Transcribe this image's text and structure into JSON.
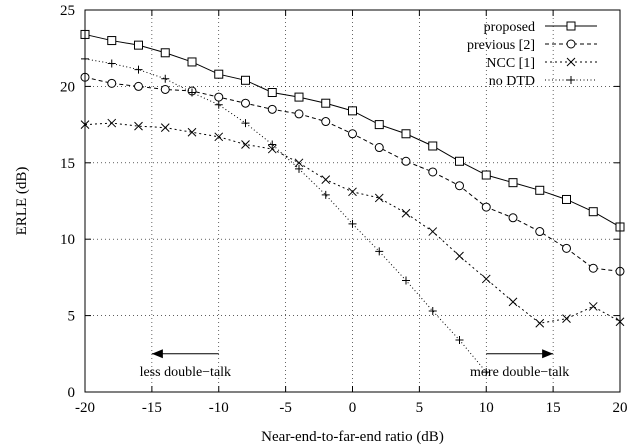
{
  "chart_data": {
    "type": "line",
    "xlabel": "Near-end-to-far-end ratio (dB)",
    "ylabel": "ERLE (dB)",
    "xlim": [
      -20,
      20
    ],
    "ylim": [
      0,
      25
    ],
    "xticks": [
      -20,
      -15,
      -10,
      -5,
      0,
      5,
      10,
      15,
      20
    ],
    "yticks": [
      0,
      5,
      10,
      15,
      20,
      25
    ],
    "grid": true,
    "legend_position": "top-right",
    "series": [
      {
        "name": "proposed",
        "marker": "square",
        "dash": "solid",
        "x": [
          -20,
          -18,
          -16,
          -14,
          -12,
          -10,
          -8,
          -6,
          -4,
          -2,
          0,
          2,
          4,
          6,
          8,
          10,
          12,
          14,
          16,
          18,
          20
        ],
        "y": [
          23.4,
          23.0,
          22.7,
          22.2,
          21.6,
          20.8,
          20.4,
          19.6,
          19.3,
          18.9,
          18.4,
          17.5,
          16.9,
          16.1,
          15.1,
          14.2,
          13.7,
          13.2,
          12.6,
          11.8,
          10.8
        ]
      },
      {
        "name": "previous [2]",
        "marker": "circle",
        "dash": "dashed",
        "x": [
          -20,
          -18,
          -16,
          -14,
          -12,
          -10,
          -8,
          -6,
          -4,
          -2,
          0,
          2,
          4,
          6,
          8,
          10,
          12,
          14,
          16,
          18,
          20
        ],
        "y": [
          20.6,
          20.2,
          20.0,
          19.8,
          19.7,
          19.3,
          18.9,
          18.5,
          18.2,
          17.7,
          16.9,
          16.0,
          15.1,
          14.4,
          13.5,
          12.1,
          11.4,
          10.5,
          9.4,
          8.1,
          7.9
        ]
      },
      {
        "name": "NCC [1]",
        "marker": "x",
        "dash": "dotted",
        "x": [
          -20,
          -18,
          -16,
          -14,
          -12,
          -10,
          -8,
          -6,
          -4,
          -2,
          0,
          2,
          4,
          6,
          8,
          10,
          12,
          14,
          16,
          18,
          20
        ],
        "y": [
          17.5,
          17.6,
          17.4,
          17.3,
          17.0,
          16.7,
          16.2,
          15.9,
          15.0,
          13.9,
          13.1,
          12.7,
          11.7,
          10.5,
          8.9,
          7.4,
          5.9,
          4.5,
          4.8,
          5.6,
          4.6
        ]
      },
      {
        "name": "no DTD",
        "marker": "plus",
        "dash": "finedot",
        "x": [
          -20,
          -18,
          -16,
          -14,
          -12,
          -10,
          -8,
          -6,
          -4,
          -2,
          0,
          2,
          4,
          6,
          8,
          10
        ],
        "y": [
          21.8,
          21.5,
          21.1,
          20.5,
          19.6,
          18.8,
          17.6,
          16.2,
          14.6,
          12.9,
          11.0,
          9.2,
          7.3,
          5.3,
          3.4,
          1.3
        ]
      }
    ],
    "annotations": [
      {
        "text": "less double−talk",
        "arrow_direction": "left",
        "x_from": -10,
        "x_to": -15,
        "y": 2.5
      },
      {
        "text": "more double−talk",
        "arrow_direction": "right",
        "x_from": 10,
        "x_to": 15,
        "y": 2.5
      }
    ]
  }
}
